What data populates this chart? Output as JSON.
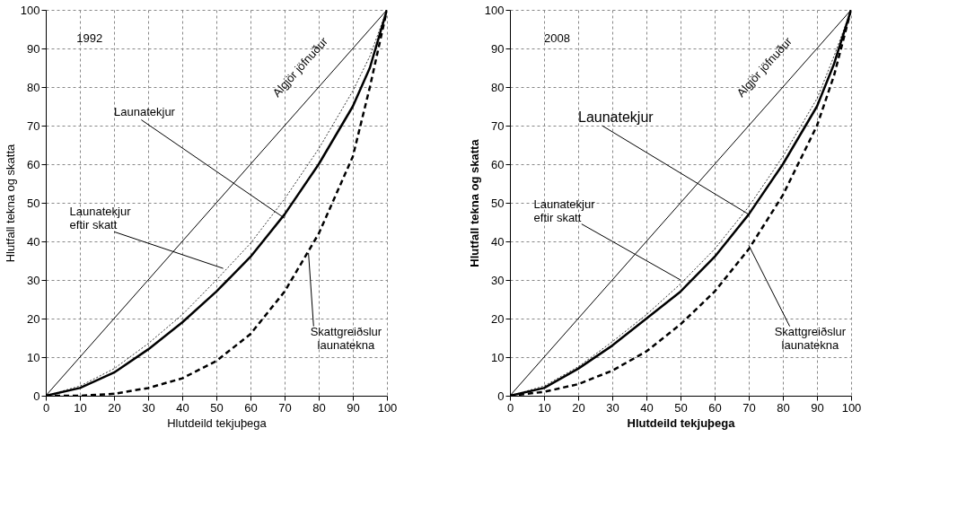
{
  "chart_data": [
    {
      "type": "line",
      "xlabel": "Hlutdeild tekjuþega",
      "ylabel": "Hlutfall tekna og skatta",
      "xlim": [
        0,
        100
      ],
      "ylim": [
        0,
        100
      ],
      "xticks": [
        0,
        10,
        20,
        30,
        40,
        50,
        60,
        70,
        80,
        90,
        100
      ],
      "yticks": [
        0,
        10,
        20,
        30,
        40,
        50,
        60,
        70,
        80,
        90,
        100
      ],
      "grid": true,
      "x": [
        0,
        10,
        20,
        30,
        40,
        50,
        60,
        70,
        80,
        90,
        95,
        100
      ],
      "series": [
        {
          "color": "#000000",
          "line_style": "solid",
          "values": [
            0,
            10,
            20,
            30,
            40,
            50,
            60,
            70,
            80,
            90,
            95,
            100
          ]
        },
        {
          "color": "#000000",
          "line_style": "solid",
          "values": [
            0,
            2,
            6,
            12,
            19,
            27,
            36,
            47,
            60,
            75,
            85,
            100
          ]
        },
        {
          "color": "#000000",
          "line_style": "dotted",
          "values": [
            0,
            2.5,
            7,
            13.5,
            21,
            30,
            39.5,
            51,
            64,
            79,
            88,
            100
          ]
        },
        {
          "color": "#000000",
          "line_style": "dashed",
          "values": [
            0,
            0,
            0.5,
            2,
            4.5,
            9,
            16,
            27,
            42,
            62,
            80,
            100
          ]
        }
      ],
      "annotations": [
        "1992",
        {
          "text": "Algjör jöfnuður",
          "x": 80,
          "y": 80
        },
        {
          "text": "Launatekjur",
          "x": 70,
          "y": 46
        },
        {
          "text": "Launatekjur\neftir skatt",
          "x": 52,
          "y": 33
        },
        {
          "text": "Skattgreiðslur\nlaunatekna",
          "x": 77,
          "y": 37
        }
      ]
    },
    {
      "type": "line",
      "xlabel": "Hlutdeild tekjuþega",
      "ylabel": "Hlutfall tekna og skatta",
      "xlim": [
        0,
        100
      ],
      "ylim": [
        0,
        100
      ],
      "xticks": [
        0,
        10,
        20,
        30,
        40,
        50,
        60,
        70,
        80,
        90,
        100
      ],
      "yticks": [
        0,
        10,
        20,
        30,
        40,
        50,
        60,
        70,
        80,
        90,
        100
      ],
      "grid": true,
      "x": [
        0,
        10,
        20,
        30,
        40,
        50,
        60,
        70,
        80,
        90,
        95,
        100
      ],
      "series": [
        {
          "color": "#000000",
          "line_style": "solid",
          "values": [
            0,
            10,
            20,
            30,
            40,
            50,
            60,
            70,
            80,
            90,
            95,
            100
          ]
        },
        {
          "color": "#000000",
          "line_style": "solid",
          "values": [
            0,
            2,
            7,
            13,
            20,
            27,
            36,
            47,
            60,
            75,
            86,
            100
          ]
        },
        {
          "color": "#000000",
          "line_style": "dotted",
          "values": [
            0,
            2.5,
            7.5,
            14,
            21,
            29,
            38,
            49,
            62,
            77,
            88,
            100
          ]
        },
        {
          "color": "#000000",
          "line_style": "dashed",
          "values": [
            0,
            1,
            3,
            6.5,
            11.5,
            18.5,
            27,
            38,
            52,
            70,
            83,
            100
          ]
        }
      ],
      "annotations": [
        "2008",
        {
          "text": "Algjör jöfnuður",
          "x": 80,
          "y": 80
        },
        {
          "text": "Launatekjur",
          "x": 70,
          "y": 47
        },
        {
          "text": "Launatekjur\neftir skatt",
          "x": 50,
          "y": 30
        },
        {
          "text": "Skattgreiðslur\nlaunatekna",
          "x": 70,
          "y": 39
        }
      ]
    }
  ]
}
